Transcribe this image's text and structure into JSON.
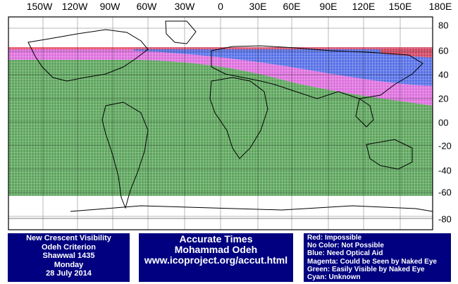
{
  "map": {
    "lon_labels": [
      "150W",
      "120W",
      "90W",
      "60W",
      "30W",
      "0",
      "30E",
      "60E",
      "90E",
      "120E",
      "150E",
      "180E"
    ],
    "lat_labels": [
      "80",
      "60",
      "40",
      "20",
      "00",
      "-20",
      "-40",
      "-60",
      "-80"
    ],
    "zones": [
      {
        "name": "red",
        "color": "#e8404a",
        "lat_range": [
          59,
          64
        ]
      },
      {
        "name": "blue",
        "color": "#2f4fe0",
        "lat_range": [
          27,
          59
        ]
      },
      {
        "name": "magenta",
        "color": "#d64fd6",
        "lat_range": [
          18,
          52
        ]
      },
      {
        "name": "green",
        "color": "#2e8b2e",
        "lat_range": [
          -60,
          48
        ]
      }
    ]
  },
  "info_left": {
    "line1": "New Crescent Visibility",
    "line2": "Odeh Criterion",
    "line3": "Shawwal 1435",
    "line4": "Monday",
    "line5": "28 July 2014"
  },
  "info_mid": {
    "line1": "Accurate Times",
    "line2": "Mohammad Odeh",
    "line3": "www.icoproject.org/accut.html"
  },
  "legend": {
    "red": "Red: Impossible",
    "none": "No Color: Not Possible",
    "blue": "Blue: Need Optical Aid",
    "magenta": "Magenta: Could be Seen by Naked Eye",
    "green": "Green: Easily Visible by Naked Eye",
    "cyan": "Cyan: Unknown"
  }
}
